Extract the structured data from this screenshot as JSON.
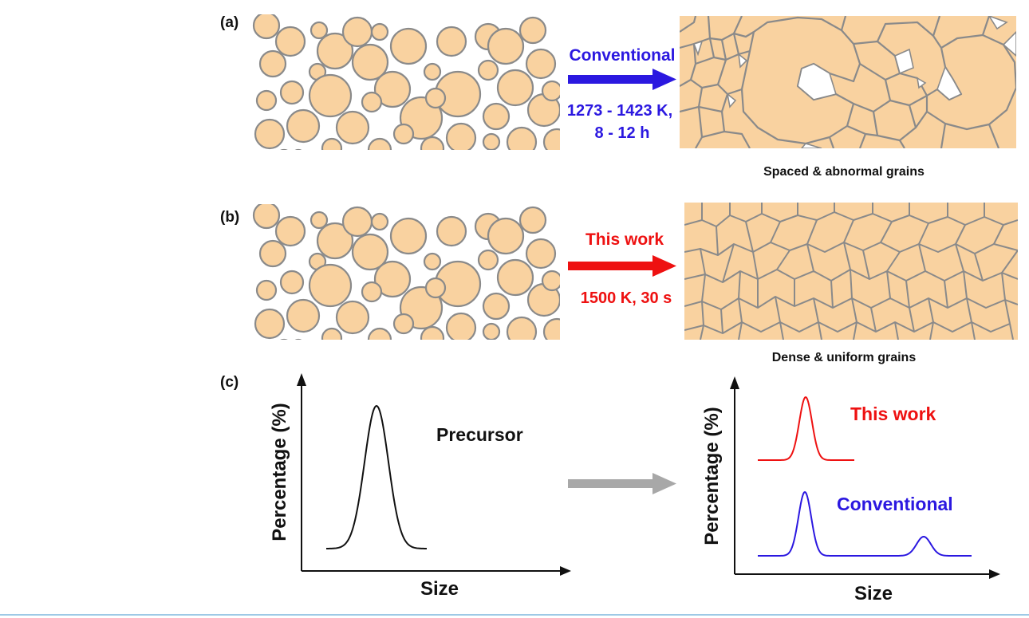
{
  "colors": {
    "grain_fill": "#f9d2a0",
    "grain_boundary": "#8a8a8a",
    "conventional": "#2b18e0",
    "this_work": "#ee1111",
    "neutral_arrow": "#a8a8a8",
    "ink": "#111111"
  },
  "panel_a": {
    "label": "(a)",
    "process_title": "Conventional",
    "conditions_line1": "1273 - 1423 K,",
    "conditions_line2": "8 - 12 h",
    "result_caption": "Spaced & abnormal grains"
  },
  "panel_b": {
    "label": "(b)",
    "process_title": "This work",
    "conditions": "1500 K, 30 s",
    "result_caption": "Dense & uniform grains"
  },
  "panel_c": {
    "label": "(c)",
    "left_plot": {
      "ylabel": "Percentage (%)",
      "xlabel": "Size",
      "curve_label": "Precursor"
    },
    "right_plot": {
      "ylabel": "Percentage (%)",
      "xlabel": "Size",
      "upper_curve_label": "This work",
      "lower_curve_label": "Conventional"
    }
  }
}
